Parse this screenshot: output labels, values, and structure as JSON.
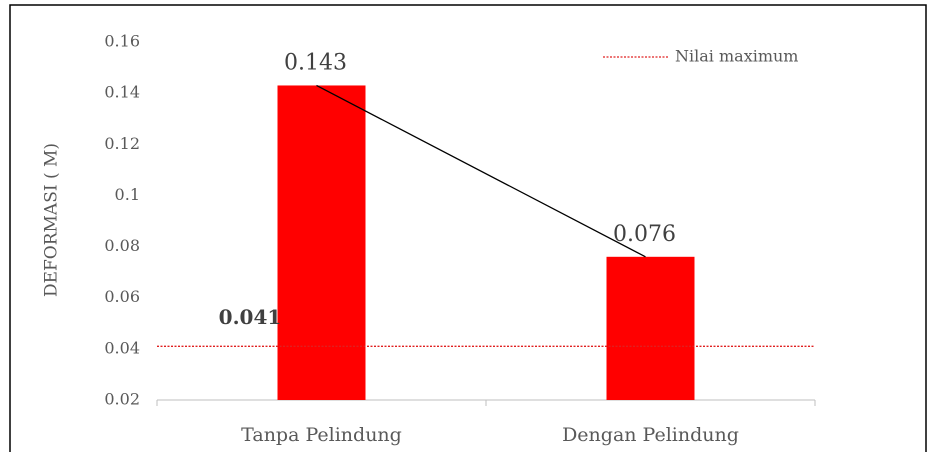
{
  "chart_data": {
    "type": "bar",
    "y_label": "DEFORMASI ( M)",
    "categories": [
      "Tanpa Pelindung",
      "Dengan Pelindung"
    ],
    "values": [
      0.143,
      0.076
    ],
    "color": "#ff0000",
    "trend_color": "#000000",
    "ylim": [
      0.02,
      0.16
    ],
    "yticks": [
      0.02,
      0.04,
      0.06,
      0.08,
      0.1,
      0.12,
      0.14,
      0.16
    ],
    "reference_line": {
      "name": "Nilai maximum",
      "value": 0.041,
      "color": "#e02020"
    },
    "legend": "top-right"
  }
}
